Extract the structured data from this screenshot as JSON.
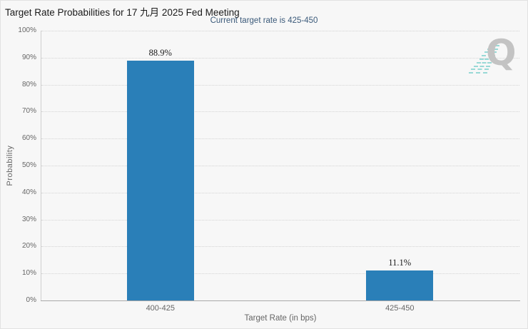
{
  "header": {
    "title": "Target Rate Probabilities for 17 九月 2025 Fed Meeting",
    "menu_icon": "hamburger-menu-icon"
  },
  "chart": {
    "subtitle": "Current target rate is 425-450",
    "y_axis_title": "Probability",
    "x_axis_title": "Target Rate (in bps)",
    "yticks": [
      "100%",
      "90%",
      "80%",
      "70%",
      "60%",
      "50%",
      "40%",
      "30%",
      "20%",
      "10%",
      "0%"
    ],
    "bar_color": "#2a7fb8",
    "subtitle_color": "#3b5a7a",
    "watermark_letter": "Q"
  },
  "chart_data": {
    "type": "bar",
    "title": "Target Rate Probabilities for 17 九月 2025 Fed Meeting",
    "subtitle": "Current target rate is 425-450",
    "categories": [
      "400-425",
      "425-450"
    ],
    "values": [
      88.9,
      11.1
    ],
    "data_labels": [
      "88.9%",
      "11.1%"
    ],
    "xlabel": "Target Rate (in bps)",
    "ylabel": "Probability",
    "ylim": [
      0,
      100
    ],
    "ytick_step": 10,
    "grid": "dotted-horizontal",
    "legend": false,
    "bar_color": "#2a7fb8"
  }
}
